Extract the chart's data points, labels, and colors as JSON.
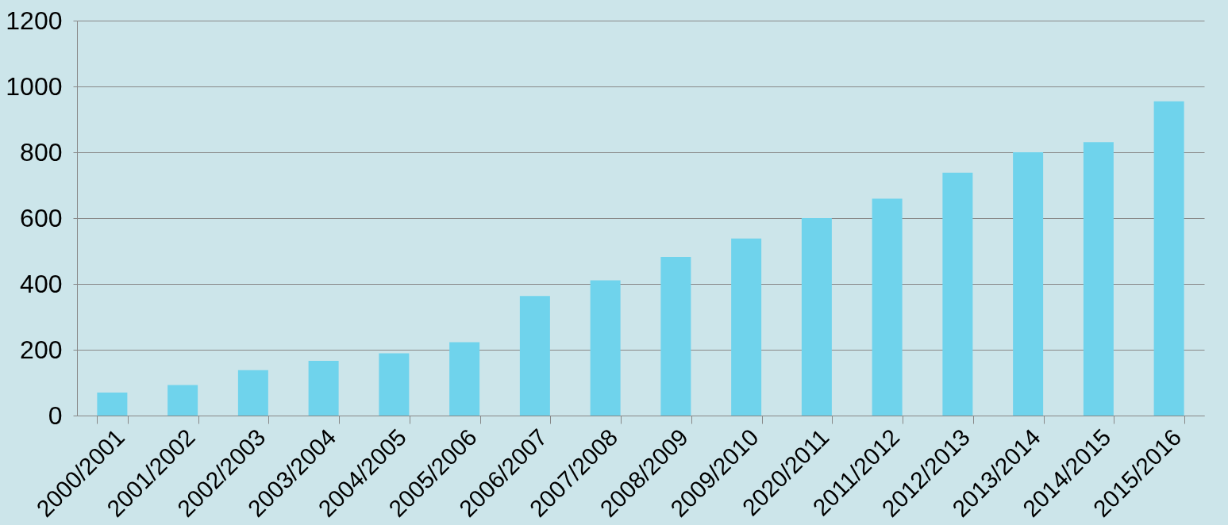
{
  "chart_data": {
    "type": "bar",
    "categories": [
      "2000/2001",
      "2001/2002",
      "2002/2003",
      "2003/2004",
      "2004/2005",
      "2005/2006",
      "2006/2007",
      "2007/2008",
      "2008/2009",
      "2009/2010",
      "2020/2011",
      "2011/2012",
      "2012/2013",
      "2013/2014",
      "2014/2015",
      "2015/2016"
    ],
    "values": [
      70,
      93,
      138,
      166,
      189,
      223,
      363,
      411,
      482,
      538,
      600,
      659,
      738,
      800,
      831,
      955
    ],
    "color": "#6fd3ec",
    "ylim": [
      0,
      1200
    ],
    "yticks": [
      0,
      200,
      400,
      600,
      800,
      1000,
      1200
    ],
    "grid": "y"
  }
}
